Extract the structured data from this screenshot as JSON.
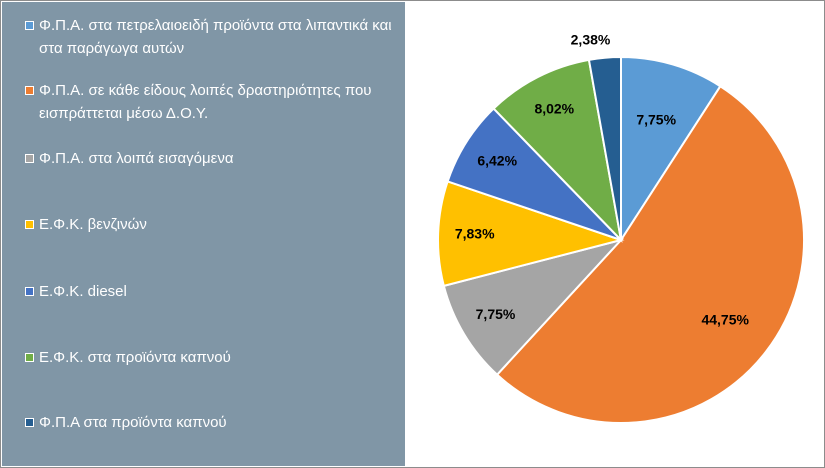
{
  "chart_data": {
    "type": "pie",
    "title": "",
    "categories": [
      "Φ.Π.Α. στα πετρελαιοειδή προϊόντα στα λιπαντικά και στα παράγωγα αυτών",
      "Φ.Π.Α. σε κάθε είδους λοιπές δραστηριότητες που εισπράττεται μέσω Δ.Ο.Υ.",
      "Φ.Π.Α. στα λοιπά εισαγόμενα",
      "Ε.Φ.Κ. βενζινών",
      "Ε.Φ.Κ. diesel",
      "Ε.Φ.Κ. στα προϊόντα καπνού",
      "Φ.Π.Α στα προϊόντα καπνού"
    ],
    "values": [
      7.75,
      44.75,
      7.75,
      7.83,
      6.42,
      8.02,
      2.38
    ],
    "labels": [
      "7,75%",
      "44,75%",
      "7,75%",
      "7,83%",
      "6,42%",
      "8,02%",
      "2,38%"
    ],
    "colors": [
      "#5b9bd5",
      "#ed7d31",
      "#a5a5a5",
      "#ffc000",
      "#4472c4",
      "#70ad47",
      "#255e91"
    ],
    "legend_position": "left"
  }
}
